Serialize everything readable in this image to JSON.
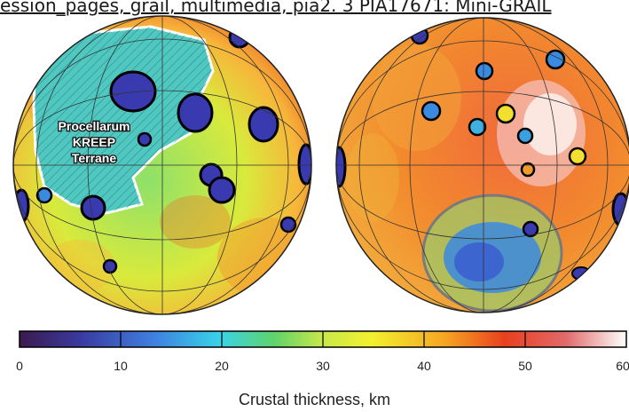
{
  "page": {
    "banner_text": "ession_pages, grail, multimedia, pia2. 3 PIA17671: Mini-GRAIL"
  },
  "map": {
    "region_label_lines": [
      "Procellarum",
      "KREEP",
      "Terrane"
    ],
    "colorbar": {
      "title": "Crustal thickness, km",
      "ticks": [
        "0",
        "10",
        "20",
        "30",
        "40",
        "50",
        "60"
      ],
      "range_km": [
        0,
        60
      ],
      "colors": [
        "#3b1a4f",
        "#3a3a9e",
        "#3f7fe0",
        "#39d3e8",
        "#5fd36a",
        "#c8e84a",
        "#f3f02e",
        "#f5a623",
        "#e8401e",
        "#d9201a",
        "#ffffff"
      ]
    }
  }
}
